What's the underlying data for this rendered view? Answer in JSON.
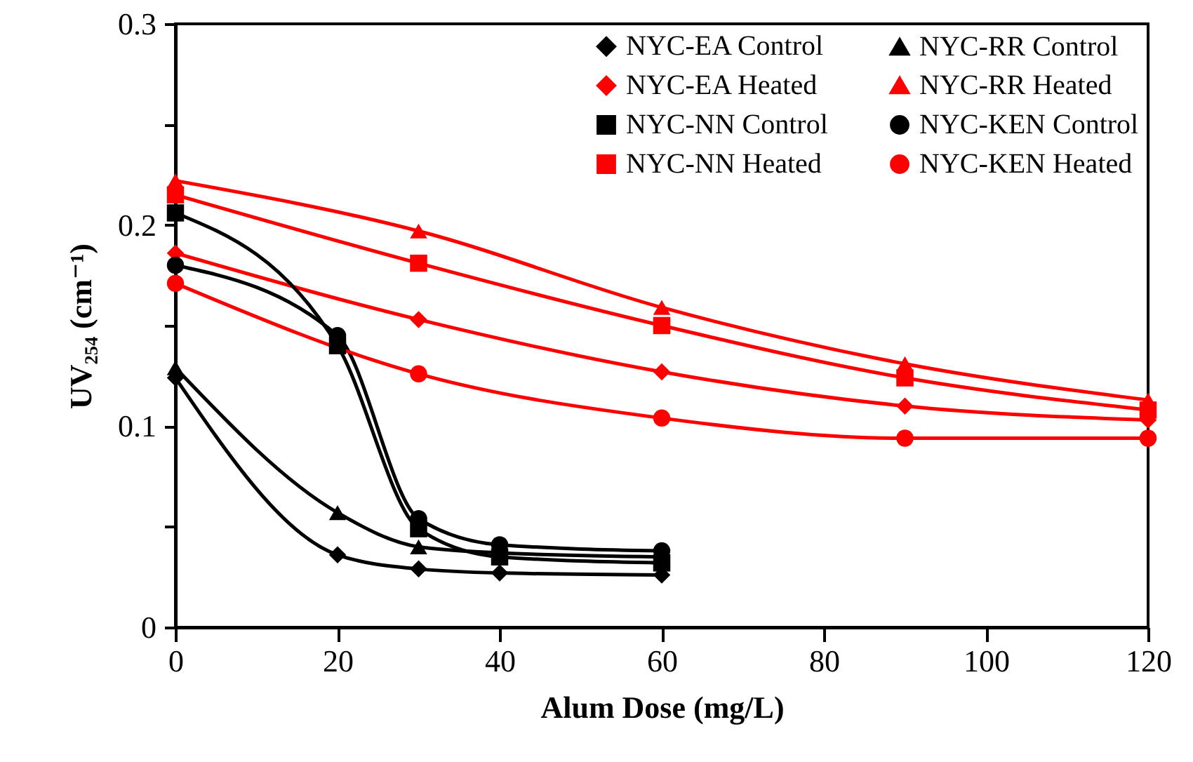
{
  "chart_data": {
    "type": "line",
    "xlabel": "Alum Dose (mg/L)",
    "ylabel": "UV₂₅₄ (cm⁻¹)",
    "xlim": [
      0,
      120
    ],
    "xticks": [
      0,
      20,
      40,
      60,
      80,
      100,
      120
    ],
    "ylim": [
      0,
      0.3
    ],
    "yticks": [
      0,
      {
        "value": 0.05,
        "label": null
      },
      0.1,
      {
        "value": 0.15,
        "label": null
      },
      0.2,
      {
        "value": 0.25,
        "label": null
      },
      0.3
    ],
    "grid": false,
    "legend": "top right",
    "line_style": "solid",
    "series": [
      {
        "name": "NYC-EA Control",
        "color": "#000000",
        "marker": "diamond",
        "x": [
          0,
          20,
          30,
          40,
          60
        ],
        "values": [
          0.124,
          0.036,
          0.029,
          0.027,
          0.026
        ]
      },
      {
        "name": "NYC-EA Heated",
        "color": "#ff0000",
        "marker": "diamond",
        "x": [
          0,
          30,
          60,
          90,
          120
        ],
        "values": [
          0.186,
          0.153,
          0.127,
          0.11,
          0.103
        ]
      },
      {
        "name": "NYC-NN Control",
        "color": "#000000",
        "marker": "square",
        "x": [
          0,
          20,
          30,
          40,
          60
        ],
        "values": [
          0.206,
          0.14,
          0.049,
          0.035,
          0.032
        ]
      },
      {
        "name": "NYC-NN Heated",
        "color": "#ff0000",
        "marker": "square",
        "x": [
          0,
          30,
          60,
          90,
          120
        ],
        "values": [
          0.215,
          0.181,
          0.15,
          0.124,
          0.108
        ]
      },
      {
        "name": "NYC-RR Control",
        "color": "#000000",
        "marker": "triangle",
        "x": [
          0,
          20,
          30,
          40,
          60
        ],
        "values": [
          0.129,
          0.057,
          0.04,
          0.037,
          0.035
        ]
      },
      {
        "name": "NYC-RR Heated",
        "color": "#ff0000",
        "marker": "triangle",
        "x": [
          0,
          30,
          60,
          90,
          120
        ],
        "values": [
          0.222,
          0.197,
          0.159,
          0.131,
          0.113
        ]
      },
      {
        "name": "NYC-KEN Control",
        "color": "#000000",
        "marker": "circle",
        "x": [
          0,
          20,
          30,
          40,
          60
        ],
        "values": [
          0.18,
          0.145,
          0.054,
          0.041,
          0.038
        ]
      },
      {
        "name": "NYC-KEN Heated",
        "color": "#ff0000",
        "marker": "circle",
        "x": [
          0,
          30,
          60,
          90,
          120
        ],
        "values": [
          0.171,
          0.126,
          0.104,
          0.094,
          0.094
        ]
      }
    ]
  }
}
